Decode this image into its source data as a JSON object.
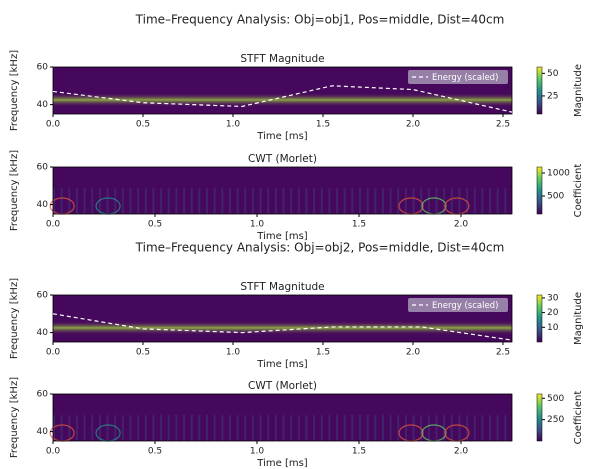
{
  "chart_data": [
    {
      "type": "heatmap",
      "figure_title": "Time–Frequency Analysis: Obj=obj1, Pos=middle, Dist=40cm",
      "title": "STFT Magnitude",
      "xlabel": "Time [ms]",
      "ylabel": "Frequency [kHz]",
      "xlim": [
        0,
        2.55
      ],
      "xticks": [
        {
          "value": 0,
          "label": "0.0"
        },
        0.5,
        {
          "value": 1,
          "label": "1.0"
        },
        1.5,
        {
          "value": 2,
          "label": "2.0"
        },
        2.5
      ],
      "ylim": [
        35,
        60
      ],
      "yticks": [
        40,
        60
      ],
      "colorbar": {
        "label": "Magnitude",
        "lim": [
          5,
          57
        ],
        "ticks": [
          25,
          50
        ]
      },
      "legend": "upper right",
      "series": [
        {
          "name": "Energy (scaled)",
          "color": "#ffffff",
          "linestyle": "dashed",
          "x": [
            0,
            0.5,
            1.05,
            1.55,
            2.0,
            2.55
          ],
          "values": [
            47,
            41,
            39,
            50,
            48,
            36
          ]
        }
      ]
    },
    {
      "type": "heatmap",
      "title": "CWT (Morlet)",
      "xlabel": "Time [ms]",
      "ylabel": "Frequency [kHz]",
      "xlim": [
        0,
        2.25
      ],
      "xticks": [
        {
          "value": 0,
          "label": "0.0"
        },
        0.5,
        {
          "value": 1,
          "label": "1.0"
        },
        1.5,
        {
          "value": 2,
          "label": "2.0"
        }
      ],
      "ylim": [
        35,
        60
      ],
      "yticks": [
        40,
        60
      ],
      "colorbar": {
        "label": "Coefficient",
        "lim": [
          110,
          1130
        ],
        "ticks": [
          500,
          1000
        ]
      }
    },
    {
      "type": "heatmap",
      "figure_title": "Time–Frequency Analysis: Obj=obj2, Pos=middle, Dist=40cm",
      "title": "STFT Magnitude",
      "xlabel": "Time [ms]",
      "ylabel": "Frequency [kHz]",
      "xlim": [
        0,
        2.55
      ],
      "xticks": [
        {
          "value": 0,
          "label": "0.0"
        },
        0.5,
        {
          "value": 1,
          "label": "1.0"
        },
        1.5,
        {
          "value": 2,
          "label": "2.0"
        },
        2.5
      ],
      "ylim": [
        35,
        60
      ],
      "yticks": [
        40,
        60
      ],
      "colorbar": {
        "label": "Magnitude",
        "lim": [
          0,
          32
        ],
        "ticks": [
          10,
          20,
          30
        ]
      },
      "legend": "upper right",
      "series": [
        {
          "name": "Energy (scaled)",
          "color": "#ffffff",
          "linestyle": "dashed",
          "x": [
            0,
            0.5,
            1.05,
            1.55,
            2.05,
            2.55
          ],
          "values": [
            50,
            42,
            40,
            43,
            43,
            36
          ]
        }
      ]
    },
    {
      "type": "heatmap",
      "title": "CWT (Morlet)",
      "xlabel": "Time [ms]",
      "ylabel": "Frequency [kHz]",
      "xlim": [
        0,
        2.25
      ],
      "xticks": [
        {
          "value": 0,
          "label": "0.0"
        },
        0.5,
        {
          "value": 1,
          "label": "1.0"
        },
        1.5,
        {
          "value": 2,
          "label": "2.0"
        }
      ],
      "ylim": [
        35,
        60
      ],
      "yticks": [
        40,
        60
      ],
      "colorbar": {
        "label": "Coefficient",
        "lim": [
          0,
          550
        ],
        "ticks": [
          250,
          500
        ]
      }
    }
  ]
}
